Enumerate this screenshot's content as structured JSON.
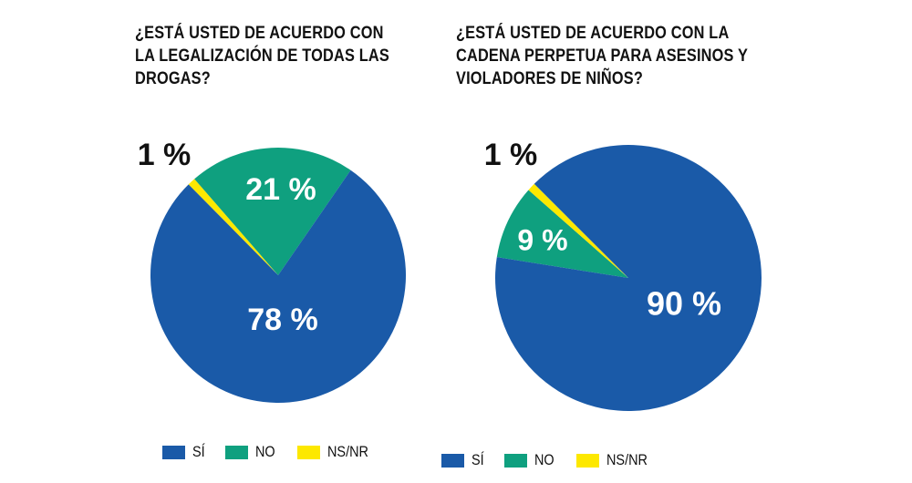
{
  "colors": {
    "si": "#1a5aa8",
    "no": "#0fa07f",
    "nsnr": "#fde800"
  },
  "chart_data": [
    {
      "type": "pie",
      "title": "¿ESTÁ USTED DE ACUERDO CON LA LEGALIZACIÓN DE TODAS LAS DROGAS?",
      "categories": [
        "SÍ",
        "NO",
        "NS/NR"
      ],
      "values": [
        78,
        21,
        1
      ],
      "labels": [
        "78 %",
        "21 %",
        "1 %"
      ],
      "legend": "bottom"
    },
    {
      "type": "pie",
      "title": "¿ESTÁ USTED DE ACUERDO CON LA CADENA PERPETUA PARA ASESINOS Y VIOLADORES DE NIÑOS?",
      "categories": [
        "SÍ",
        "NO",
        "NS/NR"
      ],
      "values": [
        90,
        9,
        1
      ],
      "labels": [
        "90 %",
        "9 %",
        "1 %"
      ],
      "legend": "bottom"
    }
  ]
}
